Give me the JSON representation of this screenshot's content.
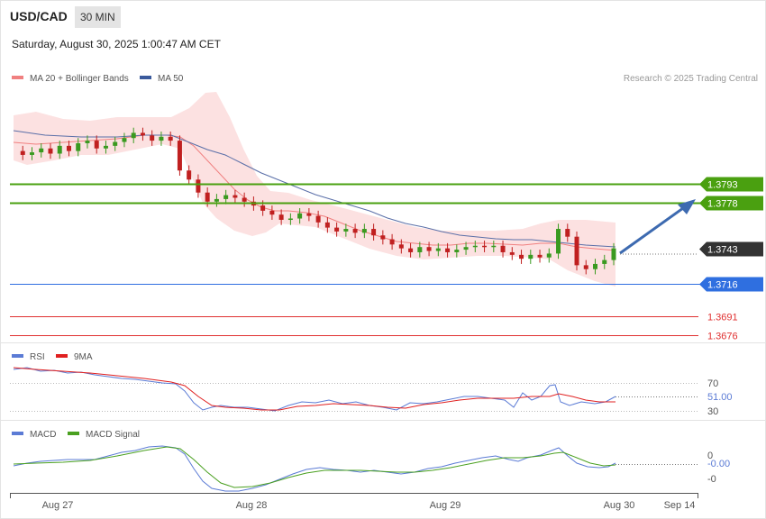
{
  "header": {
    "symbol": "USD/CAD",
    "timeframe": "30 MIN",
    "datetime": "Saturday, August 30, 2025 1:00:47 AM CET"
  },
  "legend": {
    "main": [
      {
        "label": "MA 20 + Bollinger Bands",
        "color": "#f08080"
      },
      {
        "label": "MA 50",
        "color": "#3a5a9c"
      }
    ],
    "rsi": [
      {
        "label": "RSI",
        "color": "#5b7bd5"
      },
      {
        "label": "9MA",
        "color": "#e02020"
      }
    ],
    "macd": [
      {
        "label": "MACD",
        "color": "#5b7bd5"
      },
      {
        "label": "MACD Signal",
        "color": "#4aa020"
      }
    ]
  },
  "credit": "Research © 2025 Trading Central",
  "chart_data": {
    "type": "candlestick",
    "y_range": [
      1.3665,
      1.3858
    ],
    "levels": [
      {
        "value": "1.3793",
        "kind": "resistance",
        "color": "#4aa010"
      },
      {
        "value": "1.3778",
        "kind": "resistance",
        "color": "#4aa010"
      },
      {
        "value": "1.3743",
        "kind": "last",
        "color": "#333333"
      },
      {
        "value": "1.3716",
        "kind": "pivot",
        "color": "#2f6fe0"
      },
      {
        "value": "1.3691",
        "kind": "support",
        "color": "#e03030"
      },
      {
        "value": "1.3676",
        "kind": "support",
        "color": "#e03030"
      }
    ],
    "close_path": [
      1.3818,
      1.3815,
      1.3817,
      1.382,
      1.3816,
      1.3822,
      1.3818,
      1.3824,
      1.3826,
      1.382,
      1.3822,
      1.3825,
      1.3828,
      1.3832,
      1.383,
      1.3826,
      1.3829,
      1.3826,
      1.3803,
      1.3796,
      1.3786,
      1.3779,
      1.3781,
      1.3784,
      1.3782,
      1.3779,
      1.3776,
      1.3772,
      1.3769,
      1.3765,
      1.3766,
      1.377,
      1.3768,
      1.3763,
      1.3759,
      1.3756,
      1.3758,
      1.3755,
      1.3758,
      1.3753,
      1.375,
      1.3746,
      1.3743,
      1.374,
      1.3744,
      1.3741,
      1.3743,
      1.374,
      1.3742,
      1.3744,
      1.3745,
      1.3744,
      1.3745,
      1.374,
      1.3738,
      1.3735,
      1.3738,
      1.3736,
      1.3739,
      1.3758,
      1.3752,
      1.373,
      1.3727,
      1.3731,
      1.3734,
      1.3743
    ],
    "x_ticks": [
      "Aug 27",
      "Aug 28",
      "Aug 29",
      "Aug 30",
      "Sep 14"
    ],
    "rsi": {
      "levels": [
        "70",
        "30"
      ],
      "value": "51.00"
    },
    "macd": {
      "levels": [
        "0",
        "-0"
      ],
      "value": "-0.00"
    }
  }
}
